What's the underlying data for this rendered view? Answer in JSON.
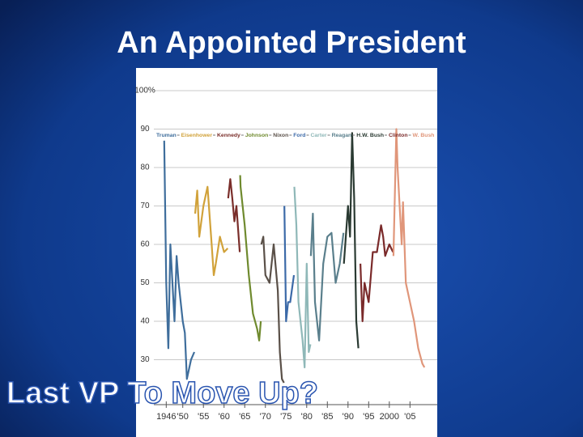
{
  "title": "An Appointed President",
  "subtitle": "Last VP To Move Up?",
  "chart_data": {
    "type": "line",
    "xlim": [
      1943,
      2011.6
    ],
    "ylim": [
      20,
      100
    ],
    "yticks": [
      {
        "value": 100,
        "label": "100%"
      },
      90,
      80,
      70,
      60,
      50,
      40,
      30
    ],
    "xticks": [
      {
        "value": 1946,
        "label": "1946"
      },
      {
        "value": 1950,
        "label": "'50"
      },
      {
        "value": 1955,
        "label": "'55"
      },
      {
        "value": 1960,
        "label": "'60"
      },
      {
        "value": 1965,
        "label": "'65"
      },
      {
        "value": 1970,
        "label": "'70"
      },
      {
        "value": 1975,
        "label": "'75"
      },
      {
        "value": 1980,
        "label": "'80"
      },
      {
        "value": 1985,
        "label": "'85"
      },
      {
        "value": 1990,
        "label": "'90"
      },
      {
        "value": 1995,
        "label": "'95"
      },
      {
        "value": 2000,
        "label": "2000"
      },
      {
        "value": 2005,
        "label": "'05"
      }
    ],
    "grid": true,
    "series": [
      {
        "name": "Truman",
        "color": "#3f6e9c",
        "x": [
          1945.5,
          1946,
          1946.5,
          1947,
          1948,
          1948.5,
          1949,
          1950,
          1950.5,
          1951,
          1952,
          1952.8
        ],
        "values": [
          87,
          50,
          33,
          60,
          40,
          57,
          50,
          40,
          37,
          25,
          30,
          32
        ]
      },
      {
        "name": "Eisenhower",
        "color": "#d1a23a",
        "x": [
          1953,
          1953.5,
          1954,
          1955,
          1956,
          1957,
          1957.5,
          1958,
          1959,
          1960,
          1960.9
        ],
        "values": [
          68,
          74,
          62,
          70,
          75,
          60,
          52,
          55,
          62,
          58,
          59
        ]
      },
      {
        "name": "Kennedy",
        "color": "#7a2e2a",
        "x": [
          1961,
          1961.5,
          1962,
          1962.5,
          1963,
          1963.8
        ],
        "values": [
          72,
          77,
          72,
          66,
          70,
          58
        ]
      },
      {
        "name": "Johnson",
        "color": "#6f8a2e",
        "x": [
          1963.9,
          1964,
          1965,
          1966,
          1967,
          1968,
          1968.5,
          1968.9
        ],
        "values": [
          78,
          75,
          65,
          52,
          42,
          38,
          35,
          40
        ]
      },
      {
        "name": "Nixon",
        "color": "#5a5048",
        "x": [
          1969,
          1969.5,
          1970,
          1971,
          1972,
          1973,
          1973.5,
          1974,
          1974.5
        ],
        "values": [
          60,
          62,
          52,
          50,
          60,
          48,
          32,
          25,
          24
        ]
      },
      {
        "name": "Ford",
        "color": "#3c6aa8",
        "x": [
          1974.6,
          1975,
          1975.5,
          1976,
          1976.9
        ],
        "values": [
          70,
          40,
          45,
          45,
          52
        ]
      },
      {
        "name": "Carter",
        "color": "#8fb8b8",
        "x": [
          1977,
          1977.5,
          1978,
          1979,
          1979.5,
          1980,
          1980.5,
          1980.9
        ],
        "values": [
          75,
          65,
          45,
          35,
          28,
          55,
          32,
          34
        ]
      },
      {
        "name": "Reagan",
        "color": "#5a7f8c",
        "x": [
          1981,
          1981.5,
          1982,
          1983,
          1984,
          1985,
          1986,
          1987,
          1988,
          1988.9
        ],
        "values": [
          57,
          68,
          45,
          35,
          55,
          62,
          63,
          50,
          55,
          63
        ]
      },
      {
        "name": "H.W. Bush",
        "color": "#2a3a32",
        "x": [
          1989,
          1990,
          1990.5,
          1991,
          1991.5,
          1992,
          1992.5
        ],
        "values": [
          55,
          70,
          62,
          89,
          72,
          40,
          33
        ]
      },
      {
        "name": "Clinton",
        "color": "#7a2a2a",
        "x": [
          1993,
          1993.5,
          1994,
          1995,
          1996,
          1997,
          1998,
          1998.5,
          1999,
          2000,
          2000.9
        ],
        "values": [
          55,
          40,
          50,
          45,
          58,
          58,
          65,
          62,
          57,
          60,
          58
        ]
      },
      {
        "name": "W. Bush",
        "color": "#e0967a",
        "x": [
          2001,
          2001.7,
          2002,
          2003,
          2003.3,
          2004,
          2005,
          2006,
          2007,
          2008,
          2008.5
        ],
        "values": [
          57,
          90,
          80,
          60,
          71,
          50,
          45,
          40,
          33,
          29,
          28
        ]
      }
    ]
  }
}
